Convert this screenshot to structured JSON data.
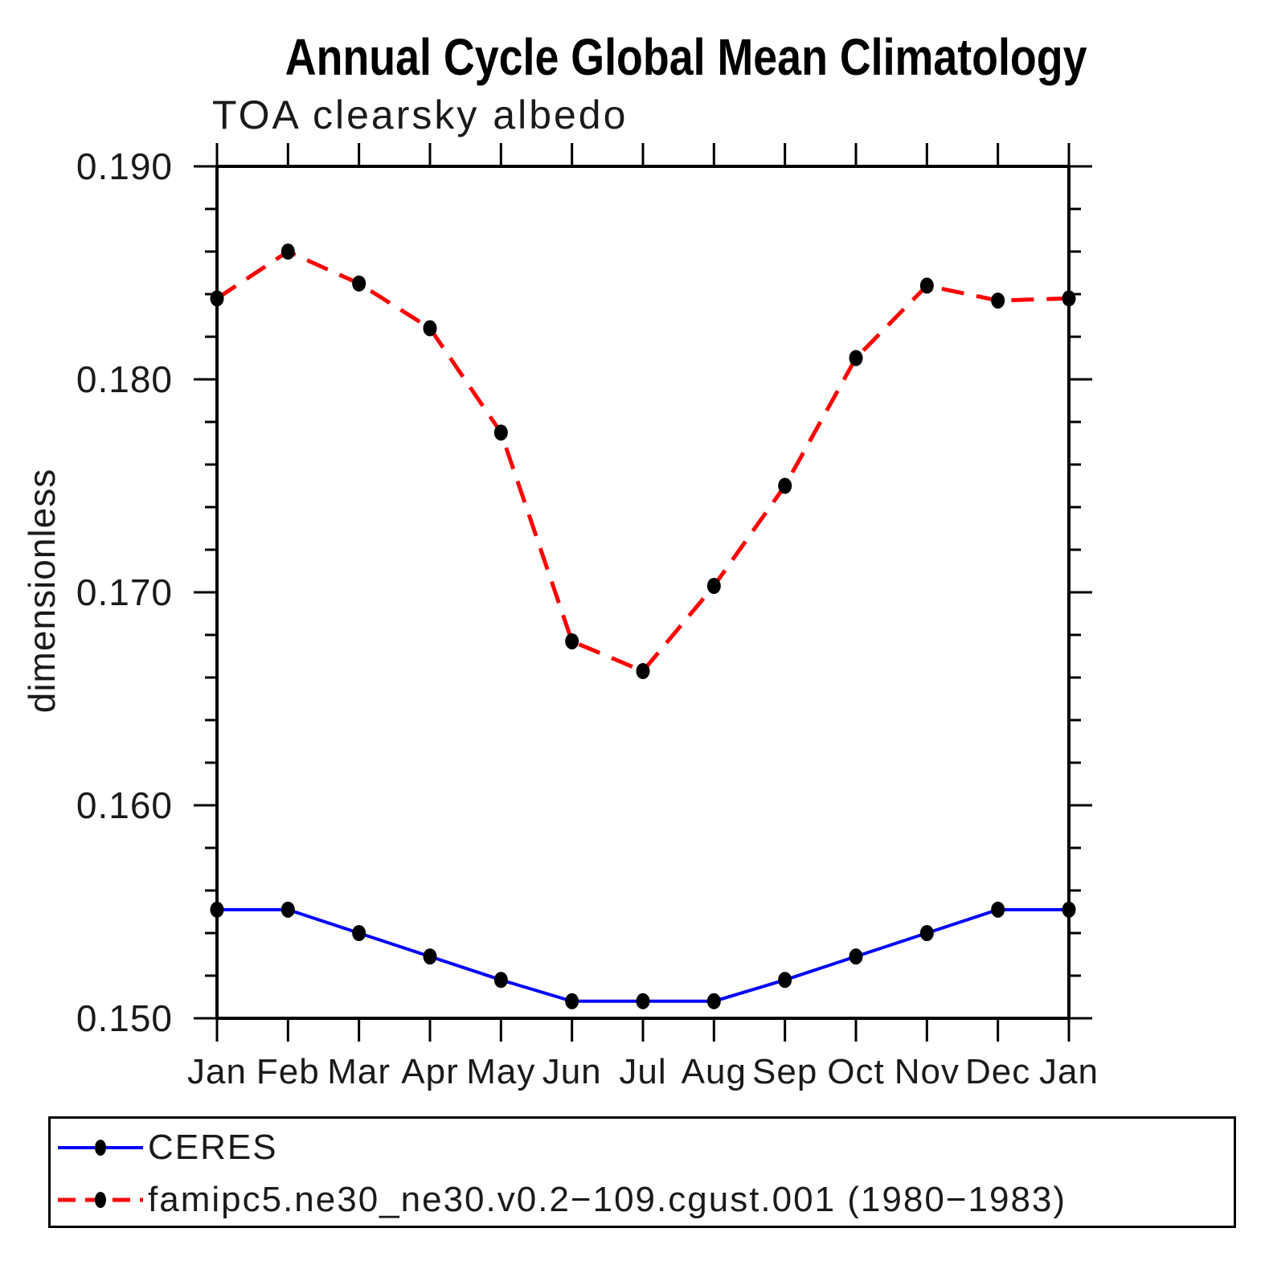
{
  "header": {
    "title": "Annual Cycle Global Mean Climatology",
    "subtitle": "TOA clearsky albedo"
  },
  "chart_data": {
    "type": "line",
    "title": "Annual Cycle Global Mean Climatology",
    "subtitle": "TOA clearsky albedo",
    "xlabel": "",
    "ylabel": "dimensionless",
    "categories": [
      "Jan",
      "Feb",
      "Mar",
      "Apr",
      "May",
      "Jun",
      "Jul",
      "Aug",
      "Sep",
      "Oct",
      "Nov",
      "Dec",
      "Jan"
    ],
    "ylim": [
      0.15,
      0.19
    ],
    "ytick_major": [
      0.15,
      0.16,
      0.17,
      0.18,
      0.19
    ],
    "ytick_labels": [
      "0.150",
      "0.160",
      "0.170",
      "0.180",
      "0.190"
    ],
    "ytick_minor_step": 0.002,
    "grid": false,
    "legend_position": "bottom-left-box",
    "series": [
      {
        "name": "CERES",
        "color": "#0000ff",
        "line_style": "solid",
        "marker": "black-filled-dot",
        "values": [
          0.1551,
          0.1551,
          0.154,
          0.1529,
          0.1518,
          0.1508,
          0.1508,
          0.1508,
          0.1518,
          0.1529,
          0.154,
          0.1551,
          0.1551
        ]
      },
      {
        "name": "famipc5.ne30_ne30.v0.2−109.cgust.001 (1980−1983)",
        "color": "#ff0000",
        "line_style": "dashed",
        "marker": "black-filled-dot",
        "values": [
          0.1838,
          0.186,
          0.1845,
          0.1824,
          0.1775,
          0.1677,
          0.1663,
          0.1703,
          0.175,
          0.181,
          0.1844,
          0.1837,
          0.1838
        ]
      }
    ]
  }
}
